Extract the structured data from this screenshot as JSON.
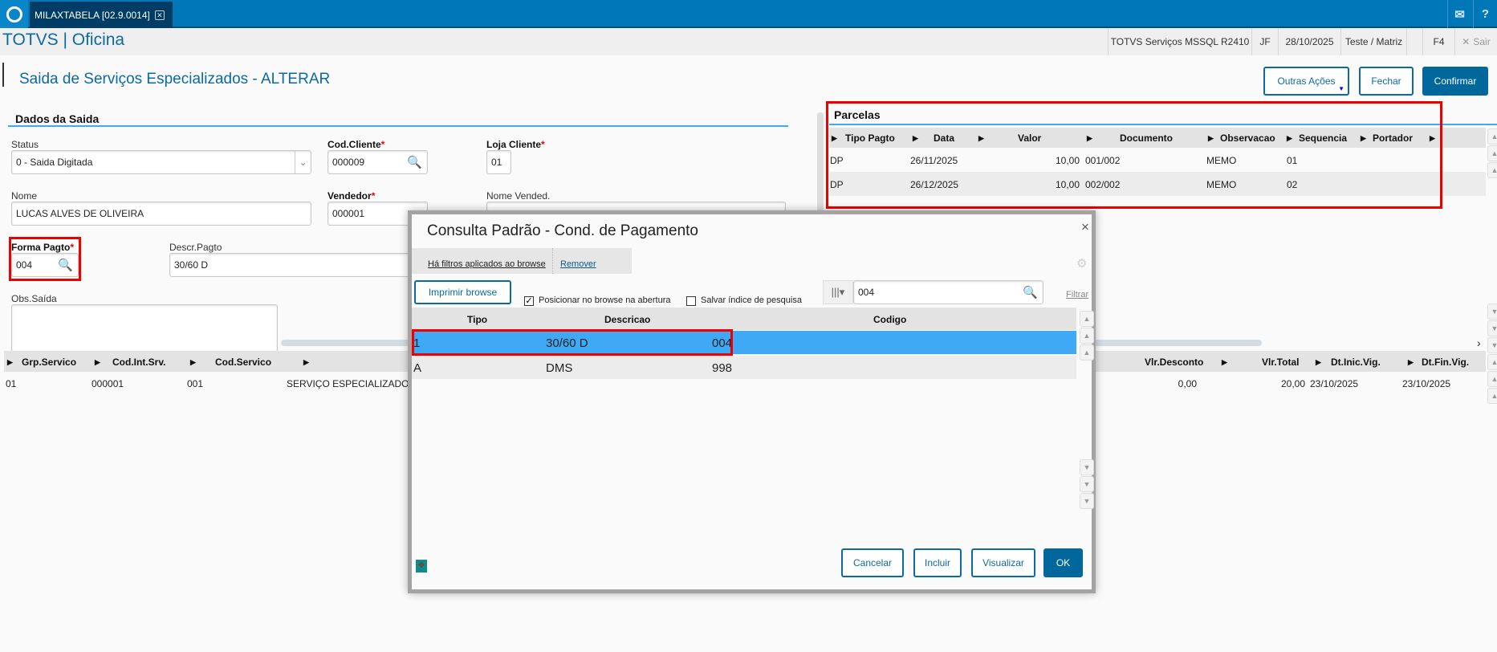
{
  "app": {
    "tab_title": "MILAXTABELA [02.9.0014]",
    "brand": "TOTVS | Oficina",
    "environment": "TOTVS Serviços MSSQL R2410",
    "user": "JF",
    "date": "28/10/2025",
    "company": "Teste / Matriz",
    "shortcut": "F4",
    "exit_label": "Sair"
  },
  "page": {
    "title": "Saida de Serviços Especializados - ALTERAR",
    "actions": {
      "more": "Outras Ações",
      "close": "Fechar",
      "confirm": "Confirmar"
    }
  },
  "form": {
    "section": "Dados da Saida",
    "status": {
      "label": "Status",
      "value": "0 - Saida Digitada"
    },
    "cod_cliente": {
      "label": "Cod.Cliente",
      "value": "000009"
    },
    "loja_cliente": {
      "label": "Loja Cliente",
      "value": "01"
    },
    "nome": {
      "label": "Nome",
      "value": "LUCAS ALVES DE OLIVEIRA"
    },
    "vendedor": {
      "label": "Vendedor",
      "value": "000001"
    },
    "nome_vended": {
      "label": "Nome Vended.",
      "value": ""
    },
    "forma_pagto": {
      "label": "Forma Pagto",
      "value": "004"
    },
    "descr_pagto": {
      "label": "Descr.Pagto",
      "value": "30/60 D"
    },
    "obs_saida": {
      "label": "Obs.Saída",
      "value": ""
    },
    "required_mark": "*"
  },
  "parcelas": {
    "title": "Parcelas",
    "columns": [
      "Tipo Pagto",
      "Data",
      "Valor",
      "Documento",
      "Observacao",
      "Sequencia",
      "Portador"
    ],
    "rows": [
      {
        "tipo": "DP",
        "data": "26/11/2025",
        "valor": "10,00",
        "documento": "001/002",
        "obs": "MEMO",
        "seq": "01"
      },
      {
        "tipo": "DP",
        "data": "26/12/2025",
        "valor": "10,00",
        "documento": "002/002",
        "obs": "MEMO",
        "seq": "02"
      }
    ]
  },
  "servicos": {
    "columns": [
      "Grp.Servico",
      "Cod.Int.Srv.",
      "Cod.Servico",
      "Vlr.Desconto",
      "Vlr.Total",
      "Dt.Inic.Vig.",
      "Dt.Fin.Vig."
    ],
    "rows": [
      {
        "grp": "01",
        "cod_int": "000001",
        "cod": "001",
        "desc": "SERVIÇO ESPECIALIZADO",
        "desconto": "0,00",
        "total": "20,00",
        "inic": "23/10/2025",
        "fim": "23/10/2025"
      }
    ]
  },
  "dialog": {
    "title": "Consulta Padrão - Cond. de Pagamento",
    "filter_notice": "Há filtros aplicados ao browse",
    "remove": "Remover",
    "print": "Imprimir browse",
    "position_check": {
      "label": "Posicionar no browse na abertura",
      "checked": true
    },
    "save_index_check": {
      "label": "Salvar índice de pesquisa",
      "checked": false
    },
    "search_value": "004",
    "filter": "Filtrar",
    "columns": [
      "Tipo",
      "Descricao",
      "Codigo"
    ],
    "rows": [
      {
        "tipo": "1",
        "descricao": "30/60 D",
        "codigo": "004",
        "selected": true
      },
      {
        "tipo": "A",
        "descricao": "DMS",
        "codigo": "998",
        "selected": false
      }
    ],
    "buttons": {
      "cancel": "Cancelar",
      "include": "Incluir",
      "view": "Visualizar",
      "ok": "OK"
    }
  },
  "colors": {
    "topbar": "#0078b7",
    "primary": "#00679d",
    "selection": "#3fa9f5",
    "highlight": "#e00000"
  }
}
